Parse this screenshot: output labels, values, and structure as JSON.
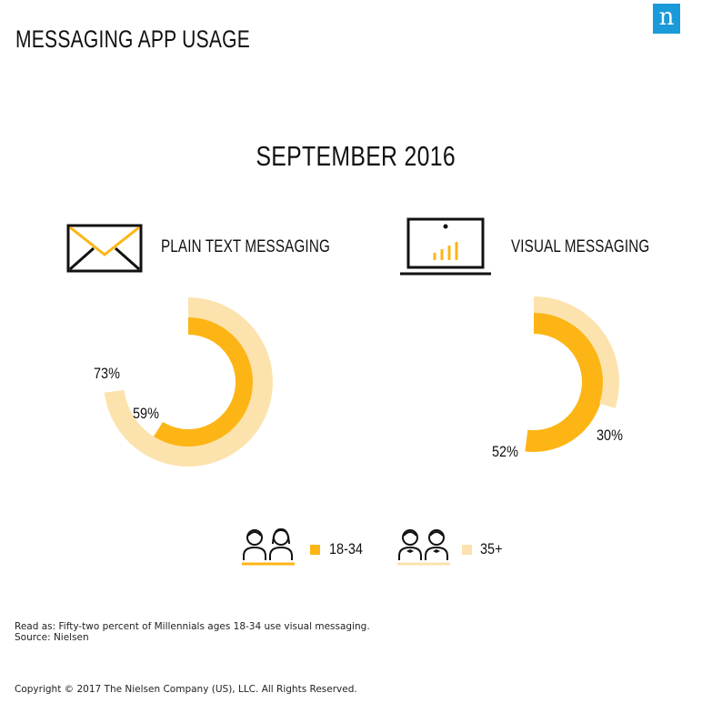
{
  "brand": {
    "logo_letter": "n",
    "logo_color": "#1a9ad9"
  },
  "header": {
    "title": "MESSAGING APP USAGE"
  },
  "period": "SEPTEMBER 2016",
  "colors": {
    "age_18_34": "#fdb515",
    "age_35_plus": "#fce3ad",
    "ink": "#111111"
  },
  "icons": {
    "plain": "envelope-icon",
    "visual": "laptop-chart-icon"
  },
  "chart_data": [
    {
      "type": "donut",
      "title": "PLAIN TEXT MESSAGING",
      "series": [
        {
          "name": "18-34",
          "value": 59,
          "label": "59%"
        },
        {
          "name": "35+",
          "value": 73,
          "label": "73%"
        }
      ]
    },
    {
      "type": "donut",
      "title": "VISUAL MESSAGING",
      "series": [
        {
          "name": "18-34",
          "value": 52,
          "label": "52%"
        },
        {
          "name": "35+",
          "value": 30,
          "label": "30%"
        }
      ]
    }
  ],
  "legend": [
    {
      "label": "18-34",
      "icon": "young-couple-icon"
    },
    {
      "label": "35+",
      "icon": "older-couple-icon"
    }
  ],
  "footer": {
    "read_as": "Read as: Fifty-two percent of Millennials ages 18-34 use visual messaging.",
    "source": "Source: Nielsen",
    "copyright": "Copyright © 2017 The Nielsen Company (US), LLC. All Rights Reserved."
  }
}
